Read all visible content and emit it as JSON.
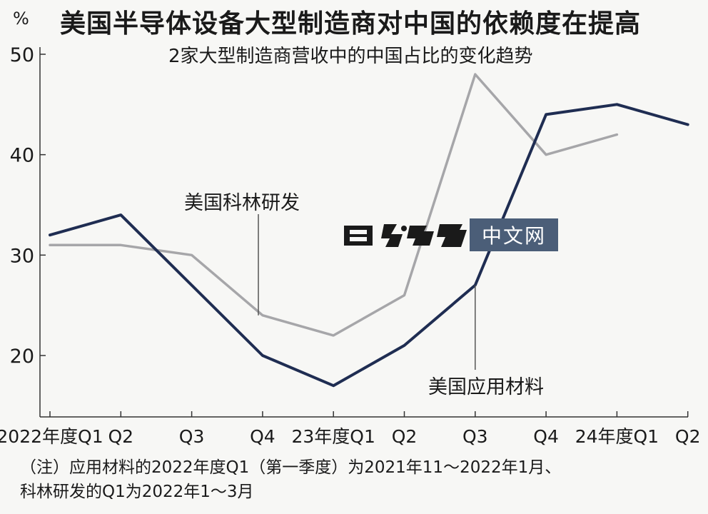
{
  "header": {
    "unit": "%",
    "title": "美国半导体设备大型制造商对中国的依赖度在提高",
    "subtitle": "2家大型制造商营收中的中国占比的变化趋势"
  },
  "watermark": {
    "brand_text": "中文网",
    "logo": "日经"
  },
  "footnote": {
    "line1": "（注）应用材料的2022年度Q1（第一季度）为2021年11～2022年1月、",
    "line2": "科林研发的Q1为2022年1～3月"
  },
  "colors": {
    "applied": "#1f2d52",
    "lam": "#a6a6a9",
    "axis": "#333333"
  },
  "chart_data": {
    "type": "line",
    "categories": [
      "2022年度Q1",
      "Q2",
      "Q3",
      "Q4",
      "23年度Q1",
      "Q2",
      "Q3",
      "Q4",
      "24年度Q1",
      "Q2"
    ],
    "ylim": [
      15,
      50
    ],
    "yticks": [
      20,
      30,
      40,
      50
    ],
    "grid": false,
    "series": [
      {
        "name": "美国应用材料",
        "color": "#1f2d52",
        "values": [
          32,
          34,
          27,
          20,
          17,
          21,
          27,
          44,
          45,
          43
        ]
      },
      {
        "name": "美国科林研发",
        "color": "#a6a6a9",
        "values": [
          31,
          31,
          30,
          24,
          22,
          26,
          48,
          40,
          42,
          null
        ]
      }
    ]
  }
}
